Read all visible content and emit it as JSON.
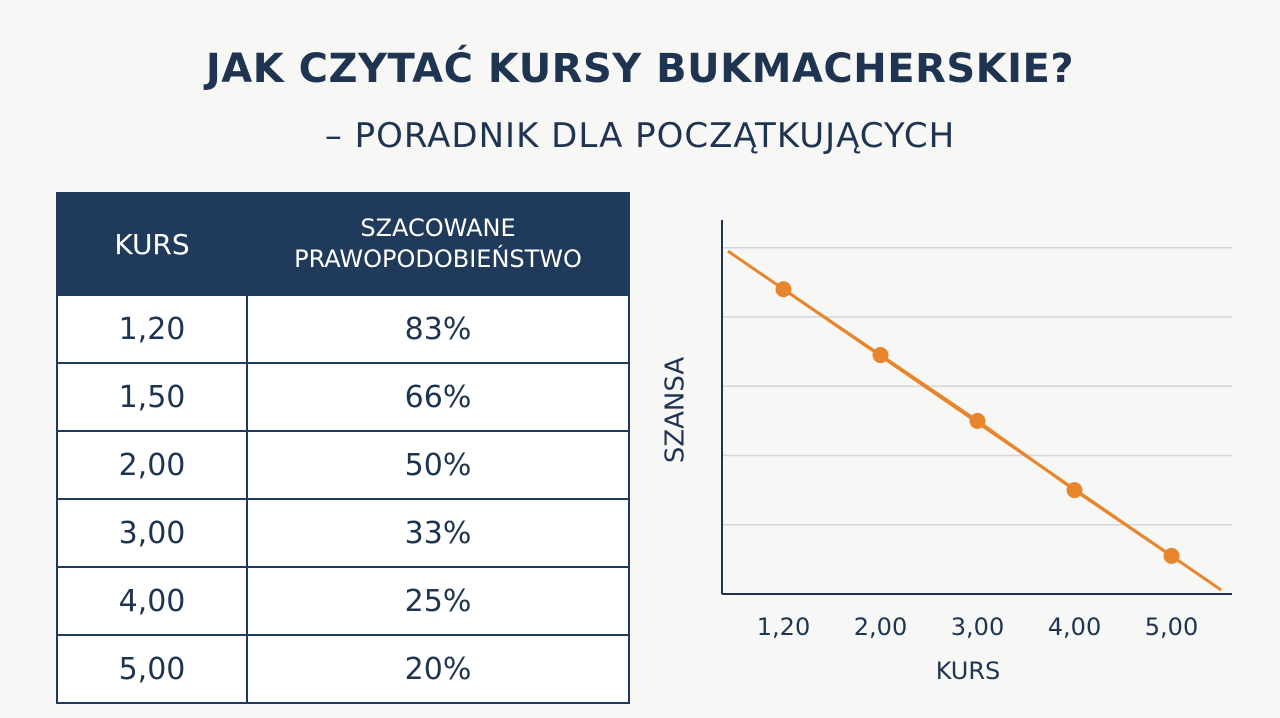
{
  "header": {
    "title": "JAK CZYTAĆ KURSY BUKMACHERSKIE?",
    "subtitle": "– PORADNIK DLA POCZĄTKUJĄCYCH"
  },
  "table": {
    "columns": [
      "KURS",
      "SZACOWANE PRAWOPODOBIEŃSTWO"
    ],
    "rows": [
      [
        "1,20",
        "83%"
      ],
      [
        "1,50",
        "66%"
      ],
      [
        "2,00",
        "50%"
      ],
      [
        "3,00",
        "33%"
      ],
      [
        "4,00",
        "25%"
      ],
      [
        "5,00",
        "20%"
      ]
    ]
  },
  "chart_data": {
    "type": "line",
    "y_label": "SZANSA",
    "x_label": "KURS",
    "categories": [
      "1,20",
      "2,00",
      "3,00",
      "4,00",
      "5,00"
    ],
    "values": [
      4.4,
      3.45,
      2.5,
      1.5,
      0.55
    ],
    "color": "#e8862e",
    "ylim": [
      0,
      5.4
    ],
    "grid_lines": [
      1,
      2,
      3,
      4,
      5
    ],
    "grid": true
  }
}
